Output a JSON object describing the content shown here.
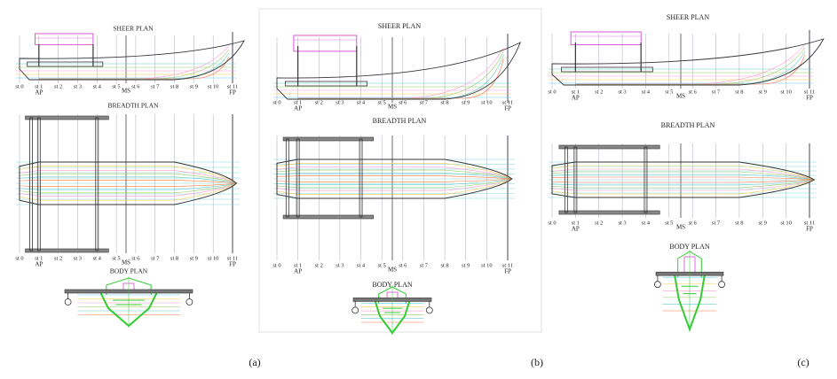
{
  "panels": [
    {
      "caption": "(a)",
      "sheer_plan": {
        "title": "SHEER PLAN",
        "stations": [
          "st 0",
          "st 1",
          "st 2",
          "st 3",
          "st 4",
          "st 5",
          "st 6",
          "st 7",
          "st 8",
          "st 9",
          "st 10",
          "st 11"
        ],
        "markers": [
          "AP",
          "MS",
          "FP"
        ]
      },
      "breadth_plan": {
        "title": "BREADTH PLAN",
        "stations": [
          "st 0",
          "st 1",
          "st 2",
          "st 3",
          "st 4",
          "st 5",
          "st 6",
          "st 7",
          "st 8",
          "st 9",
          "st 10",
          "st 11"
        ],
        "markers": [
          "AP",
          "MS",
          "FP"
        ]
      },
      "body_plan": {
        "title": "BODY PLAN"
      }
    },
    {
      "caption": "(b)",
      "sheer_plan": {
        "title": "SHEER PLAN",
        "stations": [
          "st 0",
          "st 1",
          "st 2",
          "st 3",
          "st 4",
          "st 5",
          "st 6",
          "st 7",
          "st 8",
          "st 9",
          "st 10",
          "st 11"
        ],
        "markers": [
          "AP",
          "MS",
          "FP"
        ]
      },
      "breadth_plan": {
        "title": "BREADTH PLAN",
        "stations": [
          "st 0",
          "st 1",
          "st 2",
          "st 3",
          "st 4",
          "st 5",
          "st 6",
          "st 7",
          "st 8",
          "st 9",
          "st 10",
          "st 11"
        ],
        "markers": [
          "AP",
          "MS",
          "FP"
        ]
      },
      "body_plan": {
        "title": "BODY PLAN"
      }
    },
    {
      "caption": "(c)",
      "sheer_plan": {
        "title": "SHEER PLAN",
        "stations": [
          "st 0",
          "st 1",
          "st 2",
          "st 3",
          "st 4",
          "st 5",
          "st 6",
          "st 7",
          "st 8",
          "st 9",
          "st 10",
          "st 11"
        ],
        "markers": [
          "AP",
          "MS",
          "FP"
        ]
      },
      "breadth_plan": {
        "title": "BREADTH PLAN",
        "stations": [
          "st 0",
          "st 1",
          "st 2",
          "st 3",
          "st 4",
          "st 5",
          "st 6",
          "st 7",
          "st 8",
          "st 9",
          "st 10",
          "st 11"
        ],
        "markers": [
          "AP",
          "MS",
          "FP"
        ]
      },
      "body_plan": {
        "title": "BODY PLAN"
      }
    }
  ]
}
